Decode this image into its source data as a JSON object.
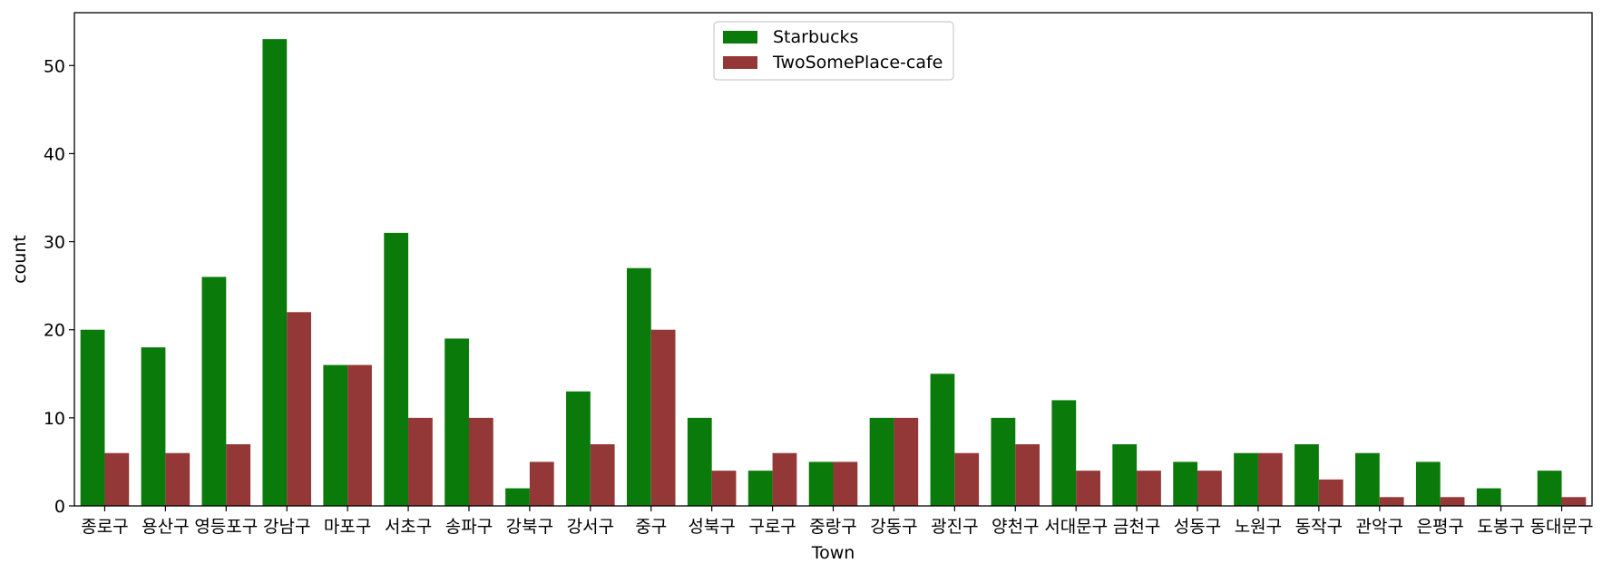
{
  "chart_data": {
    "type": "bar",
    "xlabel": "Town",
    "ylabel": "count",
    "ylim": [
      0,
      56
    ],
    "yticks": [
      0,
      10,
      20,
      30,
      40,
      50
    ],
    "grid": false,
    "legend_position": "top-center",
    "categories": [
      "종로구",
      "용산구",
      "영등포구",
      "강남구",
      "마포구",
      "서초구",
      "송파구",
      "강북구",
      "강서구",
      "중구",
      "성북구",
      "구로구",
      "중랑구",
      "강동구",
      "광진구",
      "양천구",
      "서대문구",
      "금천구",
      "성동구",
      "노원구",
      "동작구",
      "관악구",
      "은평구",
      "도봉구",
      "동대문구"
    ],
    "series": [
      {
        "name": "Starbucks",
        "color": "#0a7a0a",
        "values": [
          20,
          18,
          26,
          53,
          16,
          31,
          19,
          2,
          13,
          27,
          10,
          4,
          5,
          10,
          15,
          10,
          12,
          7,
          5,
          6,
          7,
          6,
          5,
          2,
          4
        ]
      },
      {
        "name": "TwoSomePlace-cafe",
        "color": "#933737",
        "values": [
          6,
          6,
          7,
          22,
          16,
          10,
          10,
          5,
          7,
          20,
          4,
          6,
          5,
          10,
          6,
          7,
          4,
          4,
          4,
          6,
          3,
          1,
          1,
          0,
          1
        ]
      }
    ]
  }
}
